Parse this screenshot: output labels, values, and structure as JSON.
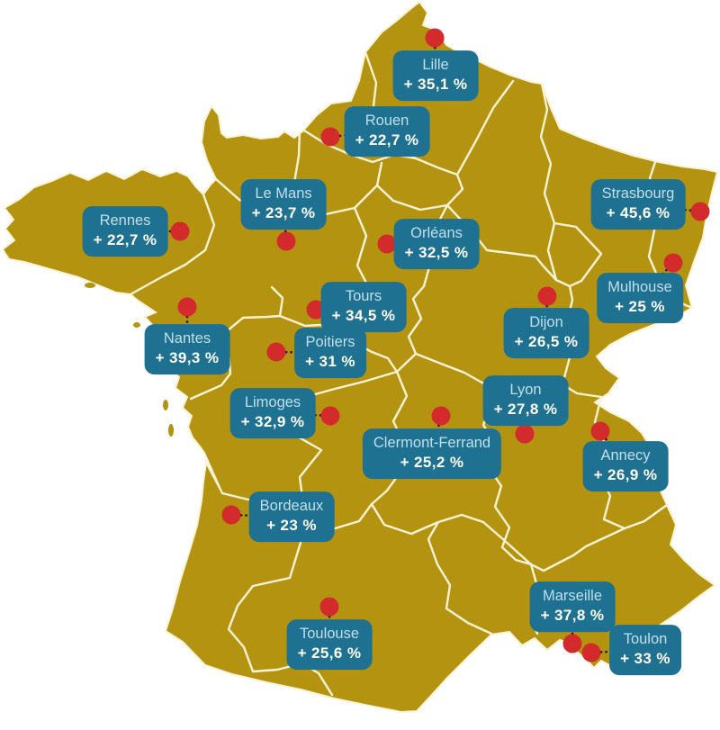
{
  "map": {
    "country": "France",
    "colors": {
      "background": "#ffffff",
      "land": "#b39310",
      "region_border": "#fcf3d4",
      "label_background": "#1e7190",
      "label_city_text": "#c2dfec",
      "label_value_text": "#ffffff",
      "marker": "#d32b2b",
      "connector": "#111111"
    },
    "cities": [
      {
        "id": "lille",
        "name": "Lille",
        "value": "+ 35,1 %"
      },
      {
        "id": "rouen",
        "name": "Rouen",
        "value": "+ 22,7 %"
      },
      {
        "id": "lemans",
        "name": "Le Mans",
        "value": "+ 23,7 %"
      },
      {
        "id": "rennes",
        "name": "Rennes",
        "value": "+ 22,7 %"
      },
      {
        "id": "orleans",
        "name": "Orléans",
        "value": "+ 32,5 %"
      },
      {
        "id": "strasbourg",
        "name": "Strasbourg",
        "value": "+ 45,6 %"
      },
      {
        "id": "mulhouse",
        "name": "Mulhouse",
        "value": "+ 25 %"
      },
      {
        "id": "tours",
        "name": "Tours",
        "value": "+ 34,5 %"
      },
      {
        "id": "dijon",
        "name": "Dijon",
        "value": "+ 26,5 %"
      },
      {
        "id": "nantes",
        "name": "Nantes",
        "value": "+ 39,3 %"
      },
      {
        "id": "poitiers",
        "name": "Poitiers",
        "value": "+ 31 %"
      },
      {
        "id": "lyon",
        "name": "Lyon",
        "value": "+ 27,8 %"
      },
      {
        "id": "limoges",
        "name": "Limoges",
        "value": "+ 32,9 %"
      },
      {
        "id": "clermont",
        "name": "Clermont-Ferrand",
        "value": "+ 25,2 %"
      },
      {
        "id": "annecy",
        "name": "Annecy",
        "value": "+ 26,9 %"
      },
      {
        "id": "bordeaux",
        "name": "Bordeaux",
        "value": "+ 23 %"
      },
      {
        "id": "toulouse",
        "name": "Toulouse",
        "value": "+ 25,6 %"
      },
      {
        "id": "marseille",
        "name": "Marseille",
        "value": "+ 37,8 %"
      },
      {
        "id": "toulon",
        "name": "Toulon",
        "value": "+ 33 %"
      }
    ]
  }
}
